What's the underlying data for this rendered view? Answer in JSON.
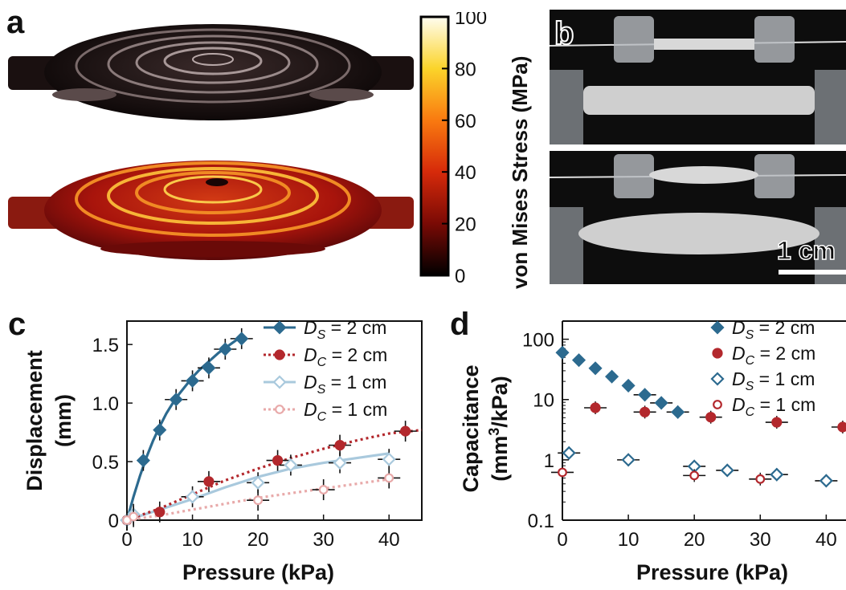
{
  "panel_a": {
    "letter": "a",
    "colorbar": {
      "title": "von Mises Stress (MPa)",
      "ticks": [
        "0",
        "20",
        "40",
        "60",
        "80",
        "100"
      ]
    }
  },
  "panel_b": {
    "letter": "b",
    "scale_label": "1 cm"
  },
  "chart_data": [
    {
      "panel": "c",
      "type": "line",
      "xlabel": "Pressure (kPa)",
      "ylabel": "Displacement (mm)",
      "xlim": [
        0,
        45
      ],
      "ylim": [
        0,
        1.7
      ],
      "xticks": [
        "0",
        "10",
        "20",
        "30",
        "40"
      ],
      "yticks": [
        "0",
        "0.5",
        "1.0",
        "1.5"
      ],
      "legend_position": "top-right",
      "series": [
        {
          "name_sym": "D",
          "name_sub": "S",
          "name_rest": " = 2 cm",
          "color": "#2c6a8f",
          "marker": "diamond-filled",
          "line": "solid",
          "x": [
            0,
            2.5,
            5,
            7.5,
            10,
            12.5,
            15,
            17.5
          ],
          "y": [
            0,
            0.51,
            0.77,
            1.03,
            1.19,
            1.3,
            1.46,
            1.55
          ],
          "fit": [
            [
              0,
              0
            ],
            [
              1,
              0.2
            ],
            [
              2,
              0.38
            ],
            [
              3,
              0.54
            ],
            [
              4,
              0.68
            ],
            [
              5,
              0.8
            ],
            [
              6,
              0.91
            ],
            [
              7,
              1.0
            ],
            [
              8,
              1.08
            ],
            [
              9,
              1.15
            ],
            [
              10,
              1.22
            ],
            [
              11,
              1.28
            ],
            [
              12,
              1.33
            ],
            [
              13,
              1.38
            ],
            [
              14,
              1.43
            ],
            [
              15,
              1.47
            ],
            [
              16,
              1.51
            ],
            [
              17,
              1.55
            ],
            [
              17.7,
              1.57
            ]
          ]
        },
        {
          "name_sym": "D",
          "name_sub": "C",
          "name_rest": " = 2 cm",
          "color": "#b3282d",
          "marker": "circle-filled",
          "line": "dotted",
          "x": [
            0,
            5,
            12.5,
            23,
            32.5,
            42.5
          ],
          "y": [
            0,
            0.07,
            0.33,
            0.51,
            0.64,
            0.76
          ],
          "fit": [
            [
              0,
              0
            ],
            [
              5,
              0.1
            ],
            [
              10,
              0.22
            ],
            [
              15,
              0.34
            ],
            [
              20,
              0.44
            ],
            [
              25,
              0.53
            ],
            [
              30,
              0.61
            ],
            [
              35,
              0.68
            ],
            [
              40,
              0.74
            ],
            [
              45,
              0.77
            ]
          ]
        },
        {
          "name_sym": "D",
          "name_sub": "S",
          "name_rest": " = 1 cm",
          "color": "#a9c9dd",
          "marker": "diamond-open",
          "line": "solid",
          "x": [
            0,
            1,
            10,
            20,
            25,
            32.5,
            40
          ],
          "y": [
            0,
            0.05,
            0.2,
            0.32,
            0.47,
            0.49,
            0.52
          ],
          "fit": [
            [
              0,
              0
            ],
            [
              5,
              0.09
            ],
            [
              10,
              0.18
            ],
            [
              15,
              0.28
            ],
            [
              20,
              0.37
            ],
            [
              25,
              0.44
            ],
            [
              30,
              0.49
            ],
            [
              35,
              0.53
            ],
            [
              40,
              0.57
            ]
          ]
        },
        {
          "name_sym": "D",
          "name_sub": "C",
          "name_rest": " = 1 cm",
          "color": "#e8a9a9",
          "marker": "circle-open",
          "line": "dotted",
          "x": [
            0,
            1,
            20,
            30,
            40
          ],
          "y": [
            0,
            0.03,
            0.17,
            0.26,
            0.36
          ],
          "fit": [
            [
              0,
              0
            ],
            [
              5,
              0.04
            ],
            [
              10,
              0.09
            ],
            [
              15,
              0.14
            ],
            [
              20,
              0.19
            ],
            [
              25,
              0.23
            ],
            [
              30,
              0.27
            ],
            [
              35,
              0.31
            ],
            [
              40,
              0.35
            ]
          ]
        }
      ]
    },
    {
      "panel": "d",
      "type": "scatter",
      "xlabel": "Pressure (kPa)",
      "ylabel": "Capacitance (mm³/kPa)",
      "ylabel_line1": "Capacitance",
      "ylabel_line2_pre": "(mm",
      "ylabel_line2_sup": "3",
      "ylabel_line2_post": "/kPa)",
      "yscale": "log",
      "xlim": [
        0,
        43
      ],
      "ylim": [
        0.1,
        200
      ],
      "xticks": [
        "0",
        "10",
        "20",
        "30",
        "40"
      ],
      "yticks": [
        "0.1",
        "1",
        "10",
        "100"
      ],
      "legend_position": "top-right",
      "series": [
        {
          "name_sym": "D",
          "name_sub": "S",
          "name_rest": " = 2 cm",
          "color": "#2c6a8f",
          "marker": "diamond-filled",
          "x": [
            0,
            2.5,
            5,
            7.5,
            10,
            12.5,
            15,
            17.5
          ],
          "y": [
            60,
            45,
            33,
            24,
            17,
            12,
            8.8,
            6.2
          ]
        },
        {
          "name_sym": "D",
          "name_sub": "C",
          "name_rest": " = 2 cm",
          "color": "#b3282d",
          "marker": "circle-filled",
          "x": [
            5,
            12.5,
            22.5,
            32.5,
            42.5
          ],
          "y": [
            7.3,
            6.2,
            5.1,
            4.2,
            3.5
          ]
        },
        {
          "name_sym": "D",
          "name_sub": "S",
          "name_rest": " = 1 cm",
          "color": "#2c6a8f",
          "marker": "diamond-open",
          "x": [
            1,
            10,
            20,
            25,
            32.5,
            40
          ],
          "y": [
            1.3,
            1.0,
            0.78,
            0.67,
            0.57,
            0.45
          ]
        },
        {
          "name_sym": "D",
          "name_sub": "C",
          "name_rest": " = 1 cm",
          "color": "#b3282d",
          "marker": "circle-open",
          "x": [
            0,
            20,
            30
          ],
          "y": [
            0.62,
            0.55,
            0.48
          ]
        }
      ]
    }
  ]
}
